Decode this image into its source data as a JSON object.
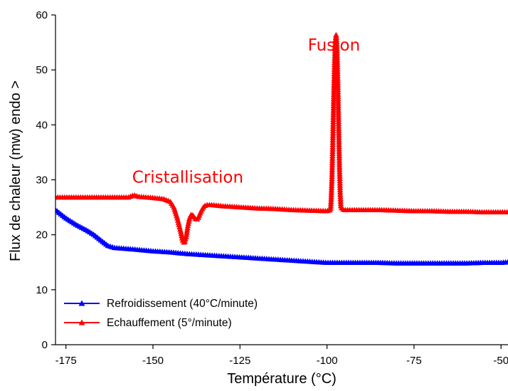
{
  "chart_data": {
    "type": "line",
    "xlabel": "Température (°C)",
    "ylabel": "Flux de chaleur (mw) endo >",
    "xlim": [
      -178,
      -48
    ],
    "ylim": [
      0,
      60
    ],
    "xticks": [
      -175,
      -150,
      -125,
      -100,
      -75,
      -50
    ],
    "yticks": [
      0,
      10,
      20,
      30,
      40,
      50,
      60
    ],
    "grid": false,
    "legend_position": "bottom-left",
    "annotations": [
      {
        "text": "Fusion",
        "x": -98,
        "y": 53.5,
        "color": "#ff0000"
      },
      {
        "text": "Cristallisation",
        "x": -140,
        "y": 29.5,
        "color": "#ff0000"
      }
    ],
    "series": [
      {
        "name": "Refroidissement (40°C/minute)",
        "color": "#0000ff",
        "marker": "triangle",
        "x": [
          -178,
          -175,
          -172,
          -169,
          -167,
          -165,
          -163,
          -161,
          -159,
          -155,
          -150,
          -145,
          -140,
          -135,
          -130,
          -125,
          -120,
          -115,
          -110,
          -105,
          -100,
          -95,
          -90,
          -85,
          -80,
          -75,
          -70,
          -65,
          -60,
          -55,
          -50,
          -48
        ],
        "y": [
          24.5,
          23.0,
          21.8,
          20.8,
          20.0,
          19.0,
          18.0,
          17.6,
          17.5,
          17.3,
          17.0,
          16.8,
          16.5,
          16.3,
          16.1,
          15.9,
          15.7,
          15.5,
          15.3,
          15.1,
          14.9,
          14.9,
          14.9,
          14.9,
          14.8,
          14.8,
          14.8,
          14.8,
          14.8,
          14.9,
          14.9,
          15.0
        ]
      },
      {
        "name": "Echauffement (5°/minute)",
        "color": "#ff0000",
        "marker": "triangle",
        "x": [
          -178,
          -172,
          -166,
          -160,
          -157,
          -155.5,
          -154,
          -150,
          -147,
          -145,
          -144,
          -143,
          -142,
          -141.5,
          -141,
          -140.5,
          -140,
          -139.5,
          -139,
          -138.5,
          -138,
          -137.5,
          -137,
          -136.5,
          -136,
          -135.5,
          -135,
          -134.5,
          -134,
          -133,
          -130,
          -125,
          -120,
          -115,
          -110,
          -105,
          -100,
          -99,
          -98.8,
          -98.6,
          -98.4,
          -98.2,
          -98,
          -97.8,
          -97.6,
          -97.4,
          -97.2,
          -97,
          -96.8,
          -96.6,
          -96.4,
          -96.2,
          -96,
          -95.5,
          -95,
          -90,
          -85,
          -80,
          -75,
          -70,
          -65,
          -60,
          -55,
          -50,
          -48
        ],
        "y": [
          26.8,
          26.8,
          26.8,
          26.8,
          26.8,
          27.2,
          26.9,
          26.7,
          26.5,
          26.0,
          25.0,
          23.0,
          20.5,
          19.0,
          18.5,
          19.5,
          21.5,
          23.0,
          23.7,
          23.5,
          23.0,
          22.7,
          23.0,
          23.8,
          24.5,
          25.0,
          25.3,
          25.4,
          25.4,
          25.4,
          25.2,
          25.0,
          24.8,
          24.7,
          24.5,
          24.4,
          24.3,
          24.5,
          26.5,
          30.0,
          35.0,
          41.0,
          47.0,
          52.0,
          55.0,
          56.5,
          55.0,
          51.0,
          45.0,
          38.0,
          32.0,
          27.5,
          25.0,
          24.6,
          24.5,
          24.5,
          24.5,
          24.4,
          24.3,
          24.3,
          24.2,
          24.2,
          24.1,
          24.1,
          24.1
        ]
      }
    ]
  }
}
